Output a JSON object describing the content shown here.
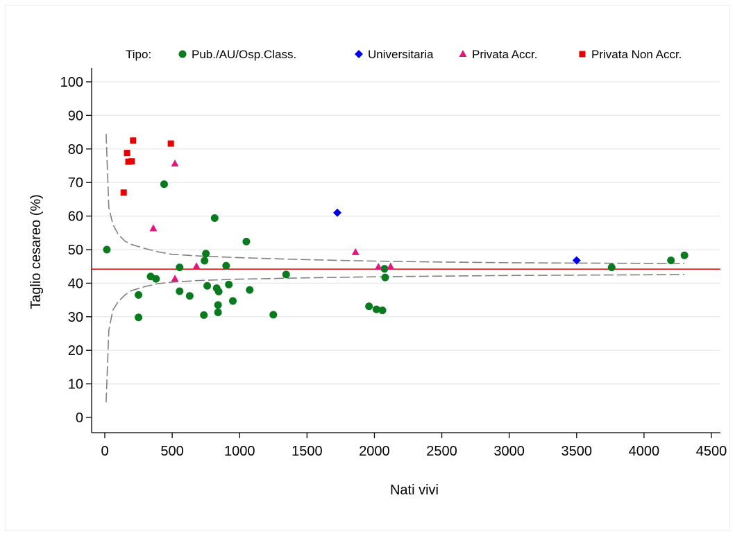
{
  "chart_data": {
    "type": "scatter",
    "xlabel": "Nati vivi",
    "ylabel": "Taglio cesareo (%)",
    "xlim": [
      0,
      4500
    ],
    "ylim": [
      0,
      100
    ],
    "x_ticks": [
      0,
      500,
      1000,
      1500,
      2000,
      2500,
      3000,
      3500,
      4000,
      4500
    ],
    "y_ticks": [
      0,
      10,
      20,
      30,
      40,
      50,
      60,
      70,
      80,
      90,
      100
    ],
    "grid": "horizontal",
    "legend": {
      "title": "Tipo:",
      "placement": "top"
    },
    "reference_line": {
      "y": 44.2,
      "color": "#e00000"
    },
    "control_limits": {
      "color": "#808080",
      "style": "dashed",
      "upper": {
        "x": [
          10,
          30,
          60,
          100,
          150,
          200,
          300,
          400,
          500,
          700,
          1000,
          1500,
          2000,
          2500,
          3000,
          3500,
          4000,
          4300
        ],
        "y": [
          84.5,
          62.5,
          57.5,
          54.5,
          52.5,
          51.5,
          50.3,
          49.3,
          48.6,
          48.1,
          47.6,
          47.0,
          46.6,
          46.3,
          46.1,
          46.0,
          45.9,
          45.9
        ]
      },
      "lower": {
        "x": [
          10,
          30,
          60,
          100,
          150,
          200,
          300,
          400,
          500,
          700,
          1000,
          1500,
          2000,
          2500,
          3000,
          3500,
          4000,
          4300
        ],
        "y": [
          4.5,
          26.0,
          32.0,
          34.5,
          36.5,
          37.8,
          39.0,
          39.9,
          40.3,
          40.8,
          41.2,
          41.6,
          41.9,
          42.1,
          42.3,
          42.4,
          42.5,
          42.6
        ]
      }
    },
    "series": [
      {
        "name": "Pub./AU/Osp.Class.",
        "marker": "circle",
        "color": "#0a7a1e",
        "points": [
          [
            15,
            50
          ],
          [
            250,
            36.5
          ],
          [
            250,
            29.8
          ],
          [
            340,
            42
          ],
          [
            380,
            41.3
          ],
          [
            440,
            69.5
          ],
          [
            555,
            44.7
          ],
          [
            555,
            37.6
          ],
          [
            630,
            36.2
          ],
          [
            735,
            30.5
          ],
          [
            740,
            46.7
          ],
          [
            750,
            48.8
          ],
          [
            760,
            39.2
          ],
          [
            815,
            59.4
          ],
          [
            830,
            38.5
          ],
          [
            840,
            33.5
          ],
          [
            840,
            31.3
          ],
          [
            845,
            37.5
          ],
          [
            900,
            45.2
          ],
          [
            920,
            39.6
          ],
          [
            950,
            34.7
          ],
          [
            1050,
            52.4
          ],
          [
            1075,
            38.0
          ],
          [
            1250,
            30.6
          ],
          [
            1345,
            42.6
          ],
          [
            1960,
            33.1
          ],
          [
            2015,
            32.2
          ],
          [
            2060,
            31.9
          ],
          [
            2075,
            44.3
          ],
          [
            2080,
            41.7
          ],
          [
            3760,
            44.7
          ],
          [
            4200,
            46.8
          ],
          [
            4300,
            48.3
          ]
        ]
      },
      {
        "name": "Universitaria",
        "marker": "diamond",
        "color": "#0000e6",
        "points": [
          [
            1725,
            61.0
          ],
          [
            3500,
            46.8
          ]
        ]
      },
      {
        "name": "Privata Accr.",
        "marker": "triangle",
        "color": "#e6147d",
        "points": [
          [
            360,
            56.3
          ],
          [
            520,
            75.6
          ],
          [
            520,
            41.3
          ],
          [
            680,
            45.0
          ],
          [
            1860,
            49.2
          ],
          [
            2030,
            44.8
          ],
          [
            2120,
            44.9
          ]
        ]
      },
      {
        "name": "Privata Non Accr.",
        "marker": "square",
        "color": "#e60000",
        "points": [
          [
            140,
            67.0
          ],
          [
            165,
            78.8
          ],
          [
            175,
            76.2
          ],
          [
            200,
            76.3
          ],
          [
            210,
            82.5
          ],
          [
            490,
            81.6
          ]
        ]
      }
    ]
  }
}
